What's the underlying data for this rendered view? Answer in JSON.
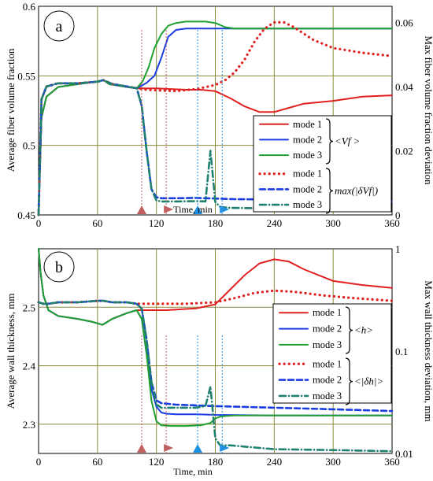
{
  "chart_data": [
    {
      "id": "a",
      "type": "line",
      "panel_label": "a",
      "xlabel": "Time, min",
      "ylabel": "Average fiber volume fraction",
      "y2label": "Max fiber volume fraction deviation",
      "xlim": [
        0,
        360
      ],
      "ylim": [
        0.45,
        0.6
      ],
      "y2lim": [
        0,
        0.065
      ],
      "y2scale": "linear",
      "grid": true,
      "legend_position": "right-middle",
      "x_ticks": [
        "0",
        "60",
        "120",
        "180",
        "240",
        "300",
        "360"
      ],
      "y_ticks": [
        "0.45",
        "0.5",
        "0.55",
        "0.6"
      ],
      "y2_ticks": [
        "0",
        "0.02",
        "0.04",
        "0.06"
      ],
      "legend": {
        "labels": [
          "mode 1",
          "mode 2",
          "mode 3",
          "mode 1",
          "mode 2",
          "mode 3"
        ],
        "group1_symbol": "<Vf >",
        "group2_symbol": "max(|δVf|)"
      },
      "markers": [
        {
          "x": 105,
          "shape": "up",
          "color": "#c06060"
        },
        {
          "x": 130,
          "shape": "right",
          "color": "#c06060"
        },
        {
          "x": 162,
          "shape": "up",
          "color": "#2090e0"
        },
        {
          "x": 187,
          "shape": "right",
          "color": "#2090e0"
        }
      ],
      "series": [
        {
          "name": "mode 1",
          "axis": "left",
          "style": "solid",
          "color": "#e02020",
          "x": [
            0,
            3,
            8,
            20,
            40,
            60,
            66,
            72,
            90,
            100,
            120,
            150,
            165,
            180,
            195,
            210,
            225,
            240,
            255,
            270,
            300,
            330,
            360
          ],
          "y": [
            0.45,
            0.52,
            0.535,
            0.542,
            0.544,
            0.546,
            0.547,
            0.544,
            0.542,
            0.541,
            0.541,
            0.54,
            0.54,
            0.539,
            0.534,
            0.528,
            0.524,
            0.524,
            0.527,
            0.53,
            0.532,
            0.535,
            0.536
          ]
        },
        {
          "name": "mode 2",
          "axis": "left",
          "style": "solid",
          "color": "#1a3de0",
          "x": [
            0,
            3,
            8,
            20,
            40,
            60,
            66,
            72,
            90,
            100,
            110,
            118,
            125,
            132,
            140,
            150,
            160,
            180,
            240,
            300,
            360
          ],
          "y": [
            0.45,
            0.52,
            0.535,
            0.542,
            0.544,
            0.546,
            0.547,
            0.544,
            0.542,
            0.541,
            0.545,
            0.55,
            0.563,
            0.578,
            0.583,
            0.584,
            0.584,
            0.584,
            0.584,
            0.584,
            0.584
          ]
        },
        {
          "name": "mode 3",
          "axis": "left",
          "style": "solid",
          "color": "#20a030",
          "x": [
            0,
            3,
            8,
            20,
            40,
            60,
            66,
            72,
            90,
            100,
            106,
            112,
            118,
            125,
            132,
            140,
            150,
            160,
            170,
            180,
            190,
            200,
            240,
            300,
            360
          ],
          "y": [
            0.45,
            0.52,
            0.535,
            0.542,
            0.544,
            0.546,
            0.547,
            0.544,
            0.542,
            0.541,
            0.546,
            0.556,
            0.57,
            0.58,
            0.586,
            0.588,
            0.589,
            0.589,
            0.589,
            0.588,
            0.585,
            0.584,
            0.584,
            0.584,
            0.584
          ]
        },
        {
          "name": "mode 1",
          "axis": "right",
          "style": "dotted",
          "color": "#e02020",
          "x": [
            0,
            3,
            8,
            20,
            40,
            60,
            66,
            75,
            90,
            100,
            110,
            120,
            140,
            160,
            170,
            180,
            190,
            200,
            210,
            220,
            230,
            240,
            250,
            260,
            270,
            280,
            300,
            330,
            360
          ],
          "y": [
            0.0,
            0.036,
            0.04,
            0.041,
            0.041,
            0.0415,
            0.042,
            0.0408,
            0.04,
            0.0395,
            0.039,
            0.0388,
            0.0386,
            0.0392,
            0.0398,
            0.0405,
            0.042,
            0.0445,
            0.0485,
            0.054,
            0.058,
            0.06,
            0.06,
            0.0585,
            0.0565,
            0.0545,
            0.052,
            0.0505,
            0.0495
          ]
        },
        {
          "name": "mode 2",
          "axis": "right",
          "style": "dashed",
          "color": "#1a3de0",
          "x": [
            0,
            3,
            8,
            20,
            40,
            60,
            66,
            75,
            90,
            100,
            105,
            110,
            115,
            120,
            125,
            140,
            160,
            180,
            200,
            240,
            300,
            360
          ],
          "y": [
            0.0,
            0.036,
            0.04,
            0.041,
            0.041,
            0.0415,
            0.042,
            0.0408,
            0.04,
            0.0395,
            0.034,
            0.02,
            0.008,
            0.0055,
            0.0052,
            0.0052,
            0.0053,
            0.0051,
            0.0049,
            0.0048,
            0.0045,
            0.0042
          ]
        },
        {
          "name": "mode 3",
          "axis": "right",
          "style": "dashdot",
          "color": "#208070",
          "x": [
            0,
            3,
            8,
            20,
            40,
            60,
            66,
            75,
            90,
            100,
            105,
            110,
            115,
            120,
            125,
            140,
            160,
            170,
            175,
            180,
            185,
            195,
            240,
            300,
            360
          ],
          "y": [
            0.0,
            0.036,
            0.04,
            0.041,
            0.041,
            0.0415,
            0.042,
            0.0408,
            0.04,
            0.0395,
            0.034,
            0.02,
            0.008,
            0.0045,
            0.0042,
            0.0042,
            0.0043,
            0.0042,
            0.02,
            0.004,
            0.0025,
            0.0022,
            0.002,
            0.0018,
            0.0017
          ]
        }
      ]
    },
    {
      "id": "b",
      "type": "line",
      "panel_label": "b",
      "xlabel": "Time, min",
      "ylabel": "Average wall thickness, mm",
      "y2label": "Max wall thickness deviation, mm",
      "xlim": [
        0,
        360
      ],
      "ylim": [
        2.25,
        2.6
      ],
      "y2lim": [
        0.01,
        1
      ],
      "y2scale": "log",
      "grid": true,
      "legend_position": "right-middle",
      "x_ticks": [
        "0",
        "60",
        "120",
        "180",
        "240",
        "300",
        "360"
      ],
      "y_ticks": [
        "2.3",
        "2.4",
        "2.5"
      ],
      "y2_ticks": [
        "0.01",
        "0.1",
        "1"
      ],
      "legend": {
        "labels": [
          "mode 1",
          "mode 2",
          "mode 3",
          "mode 1",
          "mode 2",
          "mode 3"
        ],
        "group1_symbol": "<h>",
        "group2_symbol": "<|δh|>"
      },
      "markers": [
        {
          "x": 105,
          "shape": "up",
          "color": "#c06060"
        },
        {
          "x": 130,
          "shape": "right",
          "color": "#c06060"
        },
        {
          "x": 162,
          "shape": "up",
          "color": "#2090e0"
        },
        {
          "x": 187,
          "shape": "right",
          "color": "#2090e0"
        }
      ],
      "series": [
        {
          "name": "mode 1",
          "axis": "left",
          "style": "solid",
          "color": "#e02020",
          "x": [
            0,
            2,
            5,
            10,
            20,
            40,
            55,
            65,
            75,
            90,
            100,
            130,
            160,
            180,
            195,
            210,
            225,
            240,
            255,
            270,
            300,
            330,
            360
          ],
          "y": [
            2.6,
            2.56,
            2.52,
            2.495,
            2.485,
            2.48,
            2.475,
            2.47,
            2.48,
            2.49,
            2.495,
            2.495,
            2.498,
            2.505,
            2.53,
            2.555,
            2.575,
            2.582,
            2.578,
            2.565,
            2.545,
            2.538,
            2.533
          ]
        },
        {
          "name": "mode 2",
          "axis": "left",
          "style": "solid",
          "color": "#1a3de0",
          "x": [
            0,
            2,
            5,
            10,
            20,
            40,
            55,
            65,
            75,
            90,
            100,
            105,
            110,
            115,
            120,
            125,
            130,
            140,
            160,
            180,
            240,
            300,
            360
          ],
          "y": [
            2.6,
            2.56,
            2.52,
            2.495,
            2.485,
            2.48,
            2.475,
            2.47,
            2.48,
            2.49,
            2.495,
            2.48,
            2.42,
            2.36,
            2.33,
            2.32,
            2.318,
            2.317,
            2.317,
            2.316,
            2.315,
            2.315,
            2.315
          ]
        },
        {
          "name": "mode 3",
          "axis": "left",
          "style": "solid",
          "color": "#20a030",
          "x": [
            0,
            2,
            5,
            10,
            20,
            40,
            55,
            65,
            75,
            90,
            100,
            105,
            110,
            115,
            120,
            125,
            135,
            150,
            165,
            175,
            180,
            185,
            190,
            200,
            240,
            300,
            360
          ],
          "y": [
            2.6,
            2.56,
            2.52,
            2.495,
            2.485,
            2.48,
            2.475,
            2.47,
            2.48,
            2.49,
            2.495,
            2.48,
            2.42,
            2.34,
            2.305,
            2.298,
            2.297,
            2.297,
            2.298,
            2.302,
            2.31,
            2.313,
            2.314,
            2.315,
            2.315,
            2.315,
            2.315
          ]
        },
        {
          "name": "mode 1",
          "axis": "right",
          "style": "dotted",
          "color": "#e02020",
          "x": [
            0,
            5,
            10,
            20,
            40,
            60,
            66,
            75,
            90,
            100,
            120,
            150,
            180,
            200,
            220,
            240,
            260,
            290,
            320,
            360
          ],
          "y": [
            0.3,
            0.29,
            0.29,
            0.3,
            0.3,
            0.31,
            0.31,
            0.3,
            0.3,
            0.29,
            0.29,
            0.29,
            0.3,
            0.33,
            0.37,
            0.39,
            0.38,
            0.35,
            0.33,
            0.31
          ]
        },
        {
          "name": "mode 2",
          "axis": "right",
          "style": "dashed",
          "color": "#1a3de0",
          "x": [
            0,
            5,
            10,
            20,
            40,
            60,
            66,
            75,
            90,
            100,
            105,
            110,
            115,
            120,
            125,
            140,
            180,
            240,
            300,
            360
          ],
          "y": [
            0.3,
            0.29,
            0.29,
            0.3,
            0.3,
            0.31,
            0.31,
            0.3,
            0.3,
            0.29,
            0.26,
            0.13,
            0.05,
            0.033,
            0.031,
            0.03,
            0.029,
            0.028,
            0.027,
            0.026
          ]
        },
        {
          "name": "mode 3",
          "axis": "right",
          "style": "dashdot",
          "color": "#208070",
          "x": [
            0,
            5,
            10,
            20,
            40,
            60,
            66,
            75,
            90,
            100,
            105,
            110,
            115,
            120,
            125,
            140,
            160,
            170,
            175,
            180,
            185,
            195,
            240,
            300,
            360
          ],
          "y": [
            0.3,
            0.29,
            0.29,
            0.3,
            0.3,
            0.31,
            0.31,
            0.3,
            0.3,
            0.29,
            0.26,
            0.13,
            0.05,
            0.03,
            0.028,
            0.028,
            0.028,
            0.029,
            0.045,
            0.014,
            0.012,
            0.012,
            0.011,
            0.0108,
            0.0105
          ]
        }
      ]
    }
  ]
}
